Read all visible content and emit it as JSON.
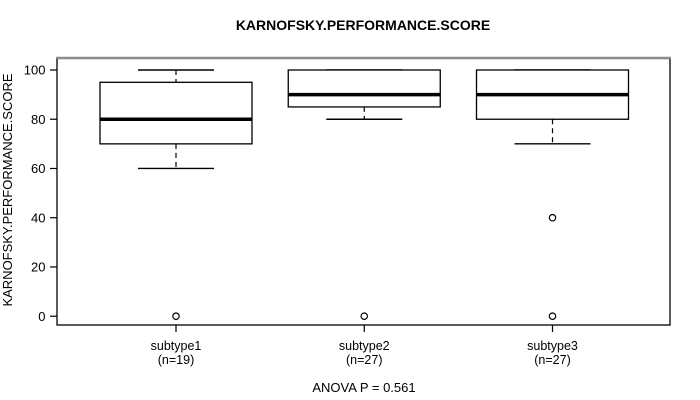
{
  "figure": {
    "title": "KARNOFSKY.PERFORMANCE.SCORE",
    "caption": "ANOVA P = 0.561"
  },
  "chart_data": {
    "type": "box",
    "title": "KARNOFSKY.PERFORMANCE.SCORE",
    "ylabel": "KARNOFSKY.PERFORMANCE.SCORE",
    "xlabel": "",
    "caption": "ANOVA P = 0.561",
    "anova_p": 0.561,
    "ylim": [
      0,
      100
    ],
    "yticks": [
      0,
      20,
      40,
      60,
      80,
      100
    ],
    "grid": false,
    "legend": "none",
    "categories": [
      "subtype1",
      "subtype2",
      "subtype3"
    ],
    "groups": [
      {
        "label": "subtype1",
        "n_label": "(n=19)",
        "n": 19,
        "whisker_low": 60,
        "q1": 70,
        "median": 80,
        "q3": 95,
        "whisker_high": 100,
        "outliers": [
          0
        ]
      },
      {
        "label": "subtype2",
        "n_label": "(n=27)",
        "n": 27,
        "whisker_low": 80,
        "q1": 85,
        "median": 90,
        "q3": 100,
        "whisker_high": 100,
        "outliers": [
          0
        ]
      },
      {
        "label": "subtype3",
        "n_label": "(n=27)",
        "n": 27,
        "whisker_low": 70,
        "q1": 80,
        "median": 90,
        "q3": 100,
        "whisker_high": 100,
        "outliers": [
          40,
          0
        ]
      }
    ],
    "colors": {
      "line": "#000000",
      "box_fill": "#ffffff",
      "frame_top_shadow": "#8c8c8c",
      "background": "#ffffff"
    }
  }
}
